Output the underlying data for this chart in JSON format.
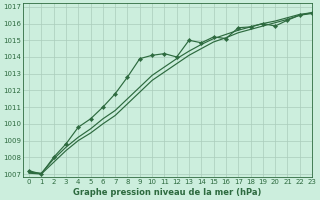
{
  "title": "Graphe pression niveau de la mer (hPa)",
  "bg_color": "#cceedd",
  "grid_color": "#aaccbb",
  "line_color": "#2d6a3f",
  "xlim": [
    -0.5,
    23
  ],
  "ylim": [
    1006.8,
    1017.2
  ],
  "yticks": [
    1007,
    1008,
    1009,
    1010,
    1011,
    1012,
    1013,
    1014,
    1015,
    1016,
    1017
  ],
  "xticks": [
    0,
    1,
    2,
    3,
    4,
    5,
    6,
    7,
    8,
    9,
    10,
    11,
    12,
    13,
    14,
    15,
    16,
    17,
    18,
    19,
    20,
    21,
    22,
    23
  ],
  "series1_x": [
    0,
    1,
    2,
    3,
    4,
    5,
    6,
    7,
    8,
    9,
    10,
    11,
    12,
    13,
    14,
    15,
    16,
    17,
    18,
    19,
    20,
    21,
    22,
    23
  ],
  "series1_y": [
    1007.2,
    1007.0,
    1008.0,
    1008.8,
    1009.8,
    1010.3,
    1011.0,
    1011.8,
    1012.8,
    1013.9,
    1014.1,
    1014.2,
    1014.0,
    1015.0,
    1014.85,
    1015.2,
    1015.1,
    1015.75,
    1015.8,
    1016.0,
    1015.85,
    1016.2,
    1016.5,
    1016.65
  ],
  "series2_x": [
    0,
    1,
    2,
    3,
    4,
    5,
    6,
    7,
    8,
    9,
    10,
    11,
    12,
    13,
    14,
    15,
    16,
    17,
    18,
    19,
    20,
    21,
    22,
    23
  ],
  "series2_y": [
    1007.1,
    1007.05,
    1007.9,
    1008.6,
    1009.2,
    1009.7,
    1010.3,
    1010.8,
    1011.5,
    1012.2,
    1012.9,
    1013.4,
    1013.9,
    1014.35,
    1014.75,
    1015.1,
    1015.35,
    1015.6,
    1015.8,
    1016.0,
    1016.15,
    1016.35,
    1016.55,
    1016.65
  ],
  "series3_x": [
    0,
    1,
    2,
    3,
    4,
    5,
    6,
    7,
    8,
    9,
    10,
    11,
    12,
    13,
    14,
    15,
    16,
    17,
    18,
    19,
    20,
    21,
    22,
    23
  ],
  "series3_y": [
    1007.05,
    1007.0,
    1007.7,
    1008.4,
    1009.0,
    1009.45,
    1010.0,
    1010.5,
    1011.2,
    1011.9,
    1012.6,
    1013.1,
    1013.6,
    1014.1,
    1014.5,
    1014.9,
    1015.15,
    1015.45,
    1015.65,
    1015.85,
    1016.05,
    1016.25,
    1016.5,
    1016.6
  ]
}
